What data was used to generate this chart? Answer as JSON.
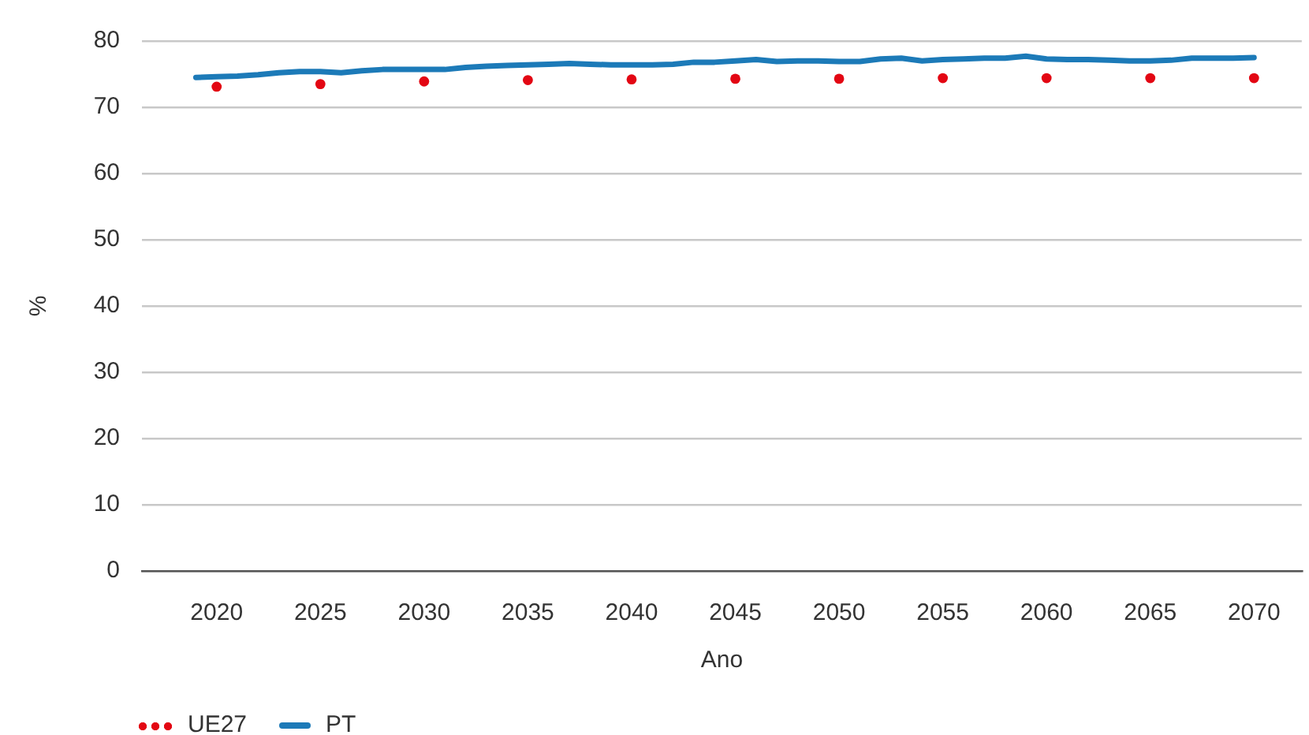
{
  "chart_data": {
    "type": "line",
    "xlabel": "Ano",
    "ylabel": "%",
    "xlim": [
      2016.4,
      2072.3
    ],
    "xticks": [
      2020,
      2025,
      2030,
      2035,
      2040,
      2045,
      2050,
      2055,
      2060,
      2065,
      2070
    ],
    "ylim": [
      0,
      80
    ],
    "yticks": [
      0,
      10,
      20,
      30,
      40,
      50,
      60,
      70,
      80
    ],
    "grid": "y",
    "legend": "bottom left",
    "series": [
      {
        "name": "UE27",
        "type": "scatter",
        "marker": "circle",
        "color": "#e30613",
        "x": [
          2020,
          2025,
          2030,
          2035,
          2040,
          2045,
          2050,
          2055,
          2060,
          2065,
          2070
        ],
        "values": [
          73.1,
          73.5,
          73.9,
          74.1,
          74.2,
          74.3,
          74.3,
          74.4,
          74.4,
          74.4,
          74.4
        ]
      },
      {
        "name": "PT",
        "color": "#1c7ab8",
        "x": [
          2019,
          2020,
          2021,
          2022,
          2023,
          2024,
          2025,
          2026,
          2027,
          2028,
          2029,
          2030,
          2031,
          2032,
          2033,
          2034,
          2035,
          2036,
          2037,
          2038,
          2039,
          2040,
          2041,
          2042,
          2043,
          2044,
          2045,
          2046,
          2047,
          2048,
          2049,
          2050,
          2051,
          2052,
          2053,
          2054,
          2055,
          2056,
          2057,
          2058,
          2059,
          2060,
          2061,
          2062,
          2063,
          2064,
          2065,
          2066,
          2067,
          2068,
          2069,
          2070
        ],
        "values": [
          74.5,
          74.6,
          74.7,
          74.9,
          75.2,
          75.4,
          75.4,
          75.2,
          75.5,
          75.7,
          75.7,
          75.7,
          75.7,
          76.0,
          76.2,
          76.3,
          76.4,
          76.5,
          76.6,
          76.5,
          76.4,
          76.4,
          76.4,
          76.5,
          76.8,
          76.8,
          77.0,
          77.2,
          76.9,
          77.0,
          77.0,
          76.9,
          76.9,
          77.3,
          77.4,
          77.0,
          77.2,
          77.3,
          77.4,
          77.4,
          77.7,
          77.3,
          77.2,
          77.2,
          77.1,
          77.0,
          77.0,
          77.1,
          77.4,
          77.4,
          77.4,
          77.5
        ]
      }
    ]
  }
}
